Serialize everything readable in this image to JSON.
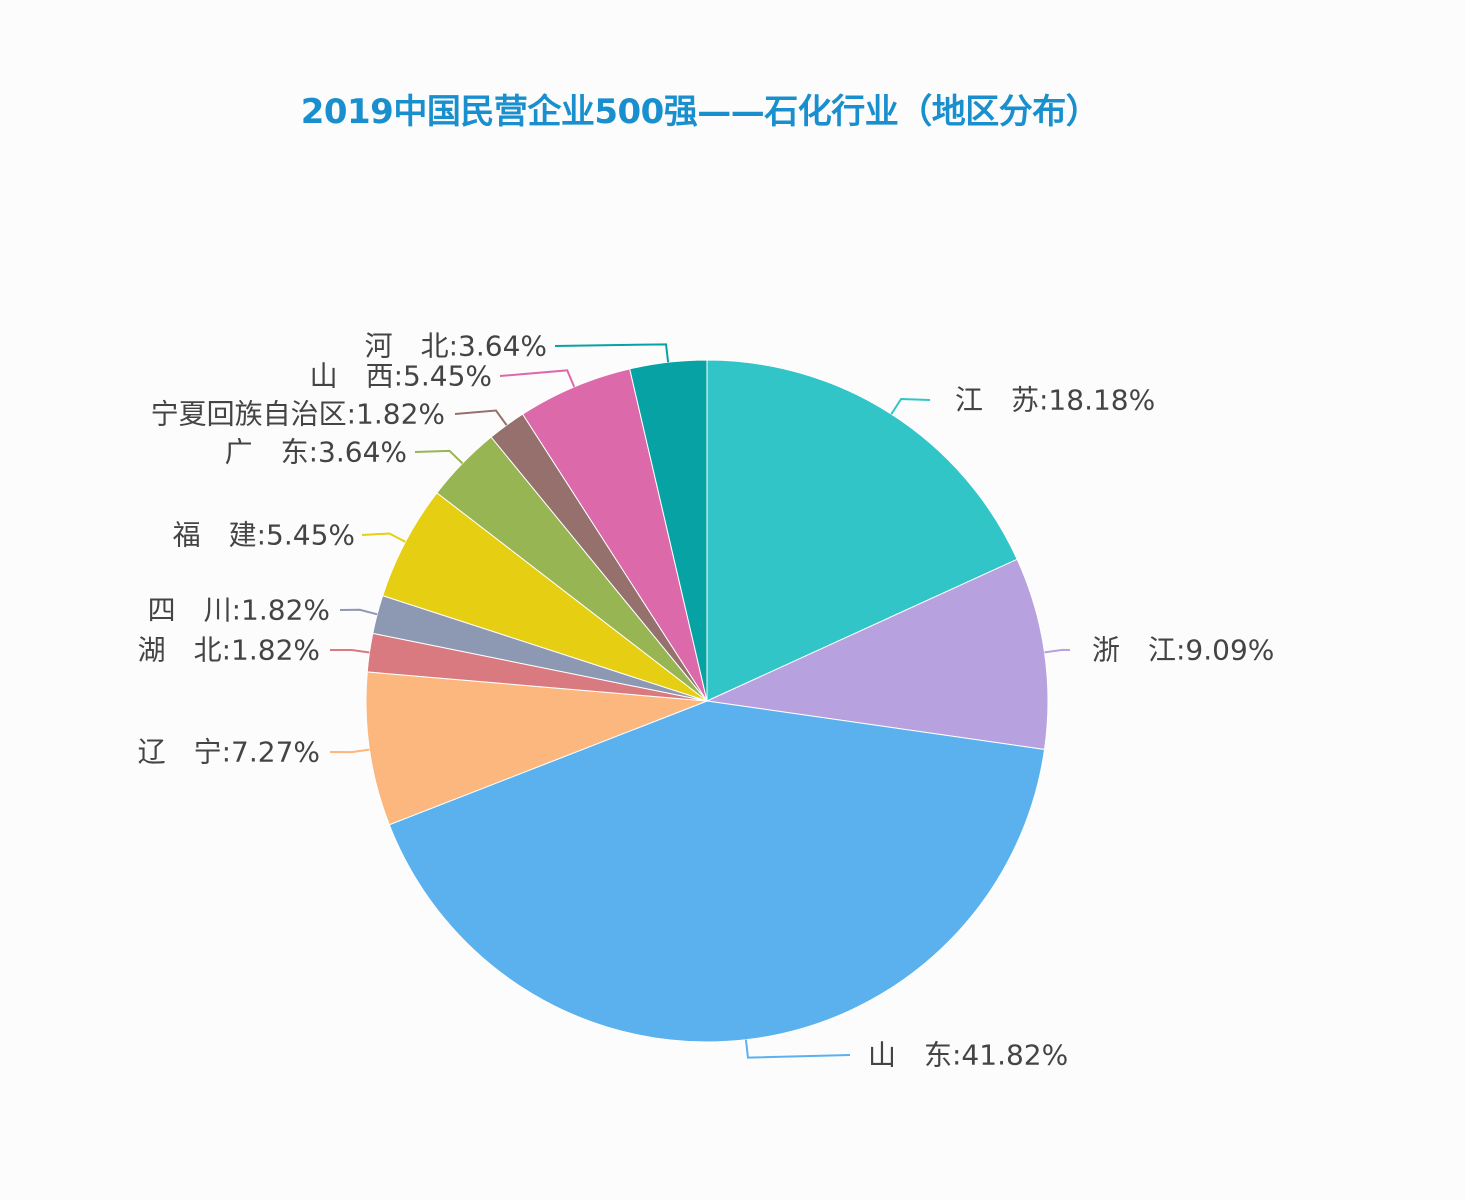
{
  "chart_data": {
    "type": "pie",
    "title": "2019中国民营企业500强——石化行业（地区分布）",
    "slices": [
      {
        "name": "江　苏",
        "value": 18.18,
        "label": "江　苏:18.18%",
        "color": "#31c5c8"
      },
      {
        "name": "浙　江",
        "value": 9.09,
        "label": "浙　江:9.09%",
        "color": "#b7a1df"
      },
      {
        "name": "山　东",
        "value": 41.82,
        "label": "山　东:41.82%",
        "color": "#5bb1ee"
      },
      {
        "name": "辽　宁",
        "value": 7.27,
        "label": "辽　宁:7.27%",
        "color": "#fbb77e"
      },
      {
        "name": "湖　北",
        "value": 1.82,
        "label": "湖　北:1.82%",
        "color": "#d87a80"
      },
      {
        "name": "四　川",
        "value": 1.82,
        "label": "四　川:1.82%",
        "color": "#8d98b3"
      },
      {
        "name": "福　建",
        "value": 5.45,
        "label": "福　建:5.45%",
        "color": "#e6cf13"
      },
      {
        "name": "广　东",
        "value": 3.64,
        "label": "广　东:3.64%",
        "color": "#97b552"
      },
      {
        "name": "宁夏回族自治区",
        "value": 1.82,
        "label": "宁夏回族自治区:1.82%",
        "color": "#95706d"
      },
      {
        "name": "山　西",
        "value": 5.45,
        "label": "山　西:5.45%",
        "color": "#dc69aa"
      },
      {
        "name": "河　北",
        "value": 3.64,
        "label": "河　北:3.64%",
        "color": "#07a2a4"
      }
    ]
  }
}
